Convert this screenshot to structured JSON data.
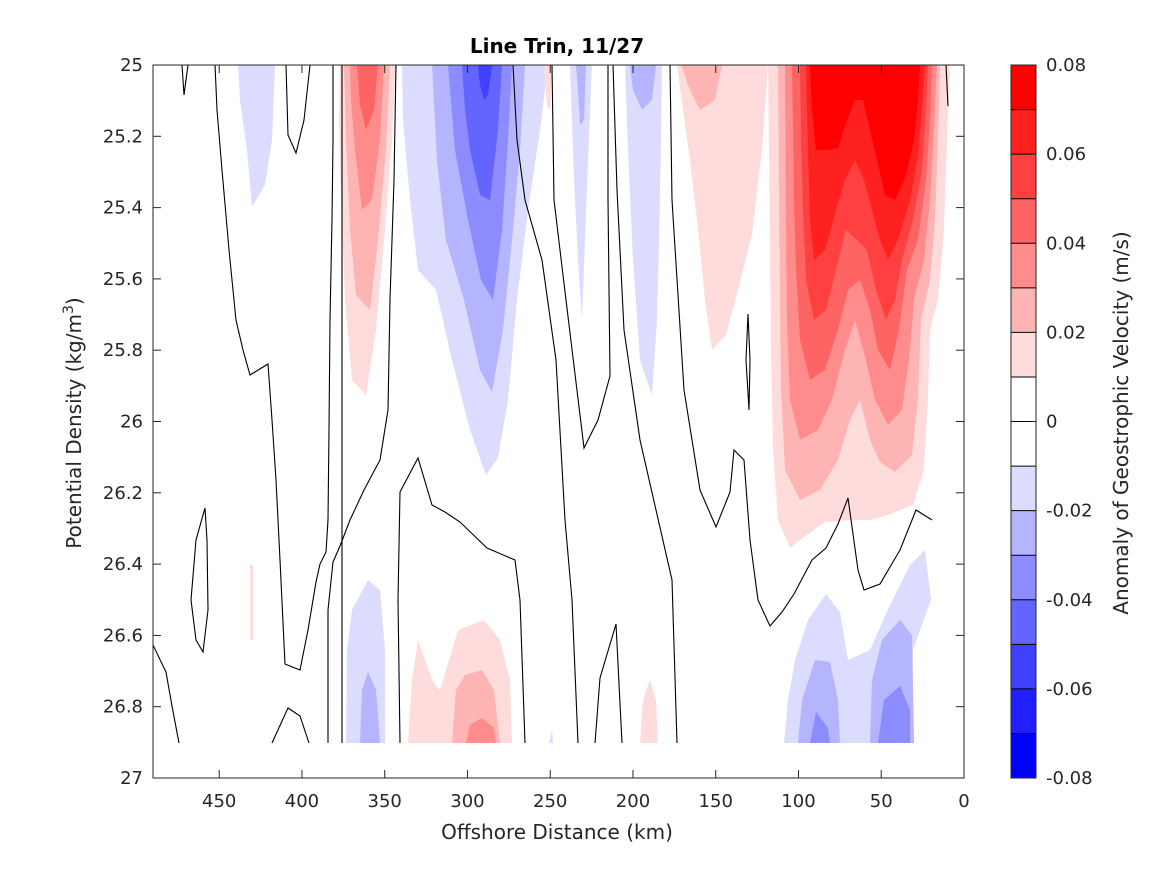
{
  "chart_data": {
    "type": "heatmap",
    "title": "Line Trin, 11/27",
    "xlabel": "Offshore Distance (km)",
    "ylabel": "Potential Density (kg/m",
    "ylabel_superscript": "3",
    "ylabel_close": ")",
    "colorbar_label": "Anomaly of Geostrophic Velocity (m/s)",
    "xlim": [
      490,
      0
    ],
    "x_reversed": true,
    "ylim": [
      27,
      25
    ],
    "y_reversed": true,
    "clim": [
      -0.08,
      0.08
    ],
    "x_ticks": [
      450,
      400,
      350,
      300,
      250,
      200,
      150,
      100,
      50,
      0
    ],
    "x_tick_labels": [
      "450",
      "400",
      "350",
      "300",
      "250",
      "200",
      "150",
      "100",
      "50",
      "0"
    ],
    "y_ticks": [
      25,
      25.2,
      25.4,
      25.6,
      25.8,
      26,
      26.2,
      26.4,
      26.6,
      26.8,
      27
    ],
    "y_tick_labels": [
      "25",
      "25.2",
      "25.4",
      "25.6",
      "25.8",
      "26",
      "26.2",
      "26.4",
      "26.6",
      "26.8",
      "27"
    ],
    "colorbar_ticks": [
      0.08,
      0.06,
      0.04,
      0.02,
      0,
      -0.02,
      -0.04,
      -0.06,
      -0.08
    ],
    "colorbar_tick_labels": [
      "0.08",
      "0.06",
      "0.04",
      "0.02",
      "0",
      "-0.02",
      "-0.04",
      "-0.06",
      "-0.08"
    ],
    "levels": [
      0.08,
      0.07,
      0.06,
      0.05,
      0.04,
      0.03,
      0.02,
      0.01,
      0,
      -0.01,
      -0.02,
      -0.03,
      -0.04,
      -0.05,
      -0.06,
      -0.07,
      -0.08
    ],
    "level_colors": [
      "#ff0000",
      "#ff2020",
      "#ff4040",
      "#ff6464",
      "#ff8c8c",
      "#ffb4b4",
      "#ffdcdc",
      "#ffffff",
      "#ffffff",
      "#dcdcff",
      "#b4b4ff",
      "#8c8cff",
      "#6464ff",
      "#4040ff",
      "#2020ff",
      "#0000ff"
    ],
    "anomaly_regions": [
      {
        "sign": "negative",
        "x": [
          428,
          420
        ],
        "y": [
          25.0,
          25.4
        ],
        "peak": -0.018
      },
      {
        "sign": "positive",
        "x": [
          375,
          345
        ],
        "y": [
          25.0,
          25.95
        ],
        "peak": 0.055
      },
      {
        "sign": "negative",
        "x": [
          335,
          255
        ],
        "y": [
          25.0,
          26.15
        ],
        "peak": -0.055
      },
      {
        "sign": "positive",
        "x": [
          250,
          245
        ],
        "y": [
          25.0,
          25.3
        ],
        "peak": 0.015
      },
      {
        "sign": "negative",
        "x": [
          240,
          225
        ],
        "y": [
          25.0,
          25.7
        ],
        "peak": -0.02
      },
      {
        "sign": "negative",
        "x": [
          205,
          180
        ],
        "y": [
          25.0,
          25.95
        ],
        "peak": -0.025
      },
      {
        "sign": "positive",
        "x": [
          160,
          135
        ],
        "y": [
          25.0,
          25.8
        ],
        "peak": 0.02
      },
      {
        "sign": "positive",
        "x": [
          110,
          20
        ],
        "y": [
          25.0,
          26.4
        ],
        "peak": 0.09
      },
      {
        "sign": "negative",
        "x": [
          375,
          340
        ],
        "y": [
          26.45,
          26.9
        ],
        "peak": -0.04
      },
      {
        "sign": "positive",
        "x": [
          330,
          270
        ],
        "y": [
          26.6,
          26.9
        ],
        "peak": 0.045
      },
      {
        "sign": "positive",
        "x": [
          195,
          185
        ],
        "y": [
          26.7,
          26.9
        ],
        "peak": 0.015
      },
      {
        "sign": "negative",
        "x": [
          105,
          20
        ],
        "y": [
          26.4,
          26.9
        ],
        "peak": -0.045
      }
    ]
  }
}
